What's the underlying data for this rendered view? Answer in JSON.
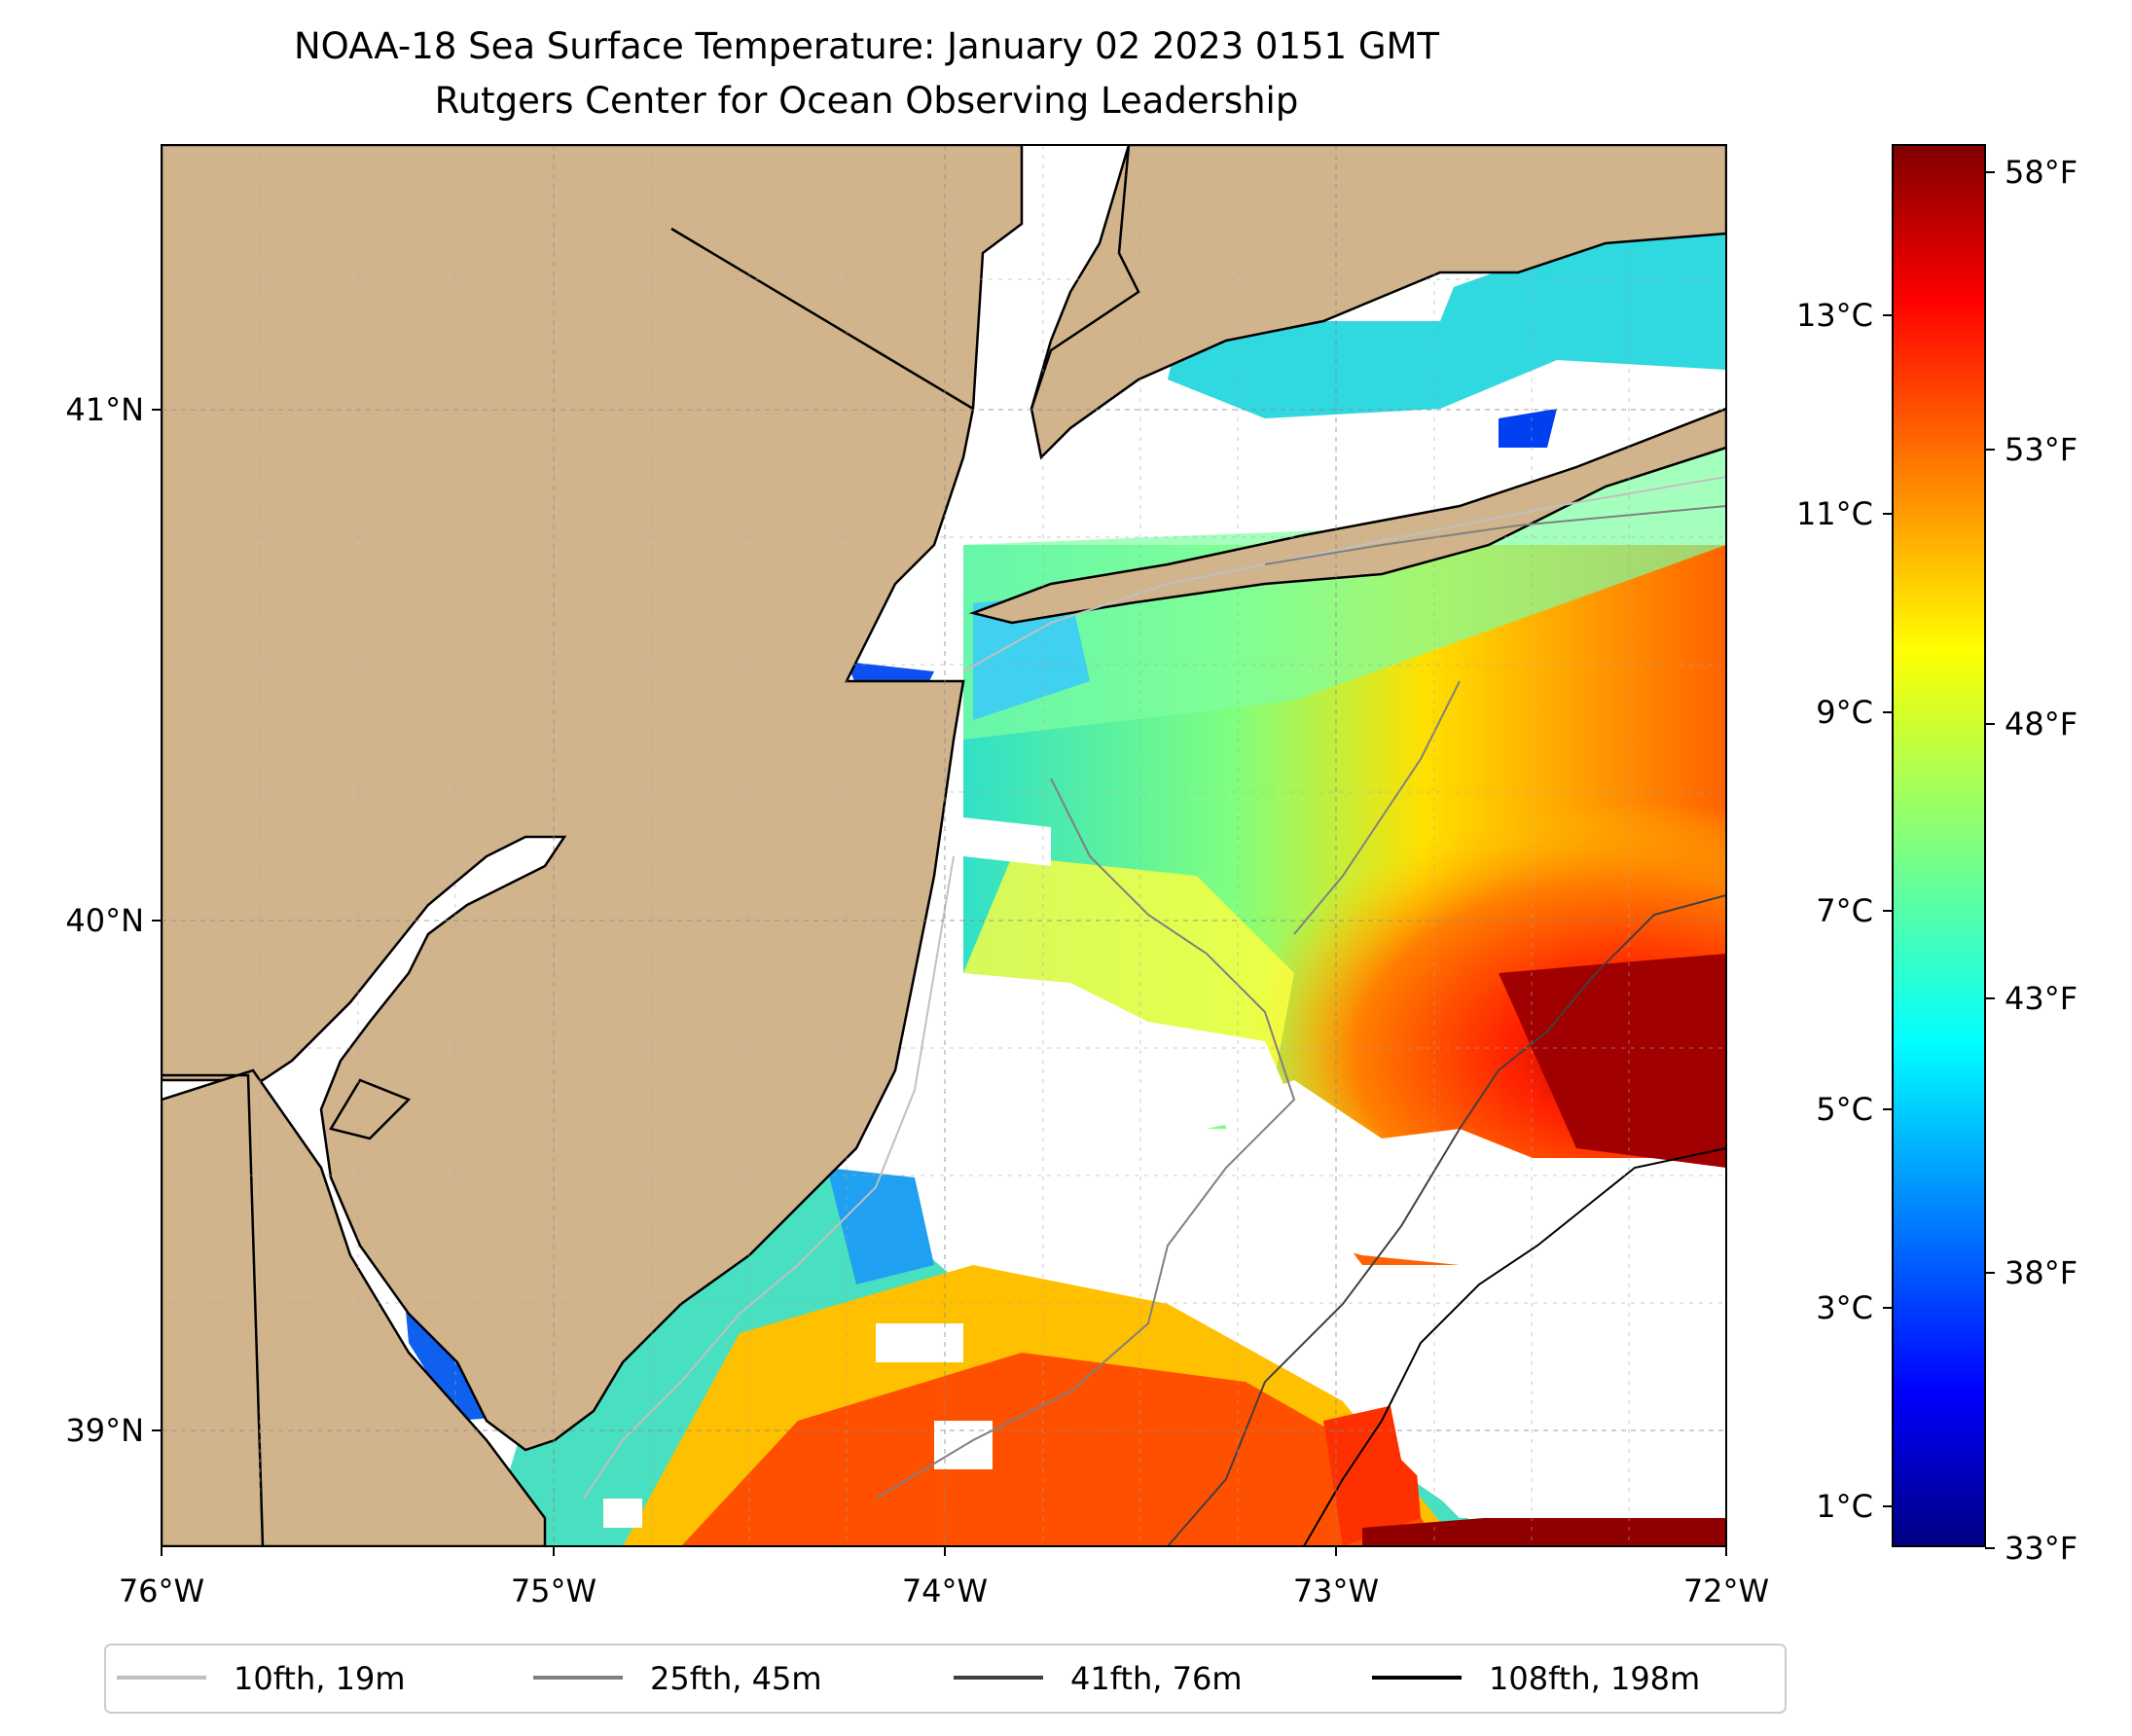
{
  "title": {
    "line1": "NOAA-18 Sea Surface Temperature: January 02 2023 0151 GMT",
    "line2": "Rutgers Center for Ocean Observing Leadership"
  },
  "map": {
    "lon_labels": [
      "76°W",
      "75°W",
      "74°W",
      "73°W",
      "72°W"
    ],
    "lat_labels": [
      "41°N",
      "40°N",
      "39°N"
    ],
    "land_color": "#d2b48c",
    "missing_color": "#ffffff"
  },
  "colorbar": {
    "celsius_labels": [
      "13°C",
      "11°C",
      "9°C",
      "7°C",
      "5°C",
      "3°C",
      "1°C"
    ],
    "fahrenheit_labels": [
      "58°F",
      "53°F",
      "48°F",
      "43°F",
      "38°F",
      "33°F"
    ],
    "colormap": "jet"
  },
  "legend": {
    "items": [
      {
        "label": "10fth, 19m",
        "color": "#c0c0c0"
      },
      {
        "label": "25fth, 45m",
        "color": "#808080"
      },
      {
        "label": "41fth, 76m",
        "color": "#404040"
      },
      {
        "label": "108fth, 198m",
        "color": "#000000"
      }
    ]
  }
}
